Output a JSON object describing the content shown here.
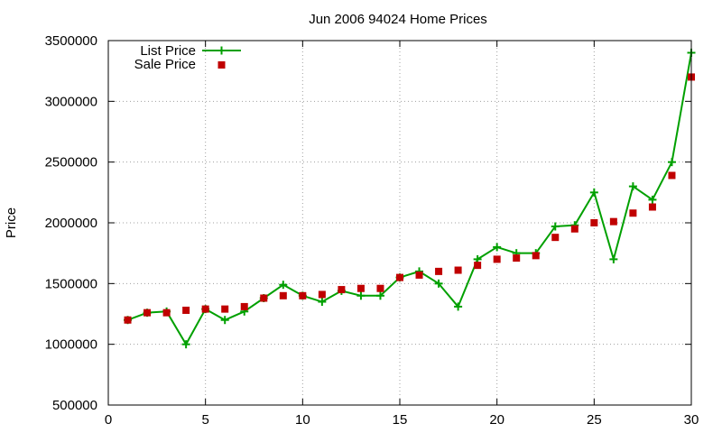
{
  "chart_data": {
    "type": "line",
    "title": "Jun 2006 94024 Home Prices",
    "xlabel": "",
    "ylabel": "Price",
    "xlim": [
      0,
      30
    ],
    "ylim": [
      500000,
      3500000
    ],
    "x_ticks": [
      0,
      5,
      10,
      15,
      20,
      25,
      30
    ],
    "y_ticks": [
      500000,
      1000000,
      1500000,
      2000000,
      2500000,
      3000000,
      3500000
    ],
    "grid": true,
    "legend_position": "top-left",
    "x": [
      1,
      2,
      3,
      4,
      5,
      6,
      7,
      8,
      9,
      10,
      11,
      12,
      13,
      14,
      15,
      16,
      17,
      18,
      19,
      20,
      21,
      22,
      23,
      24,
      25,
      26,
      27,
      28,
      29,
      30
    ],
    "series": [
      {
        "name": "List Price",
        "style": "linespoints",
        "marker": "plus",
        "color": "#00a000",
        "values": [
          1200000,
          1260000,
          1270000,
          1000000,
          1290000,
          1200000,
          1270000,
          1380000,
          1490000,
          1400000,
          1350000,
          1440000,
          1400000,
          1400000,
          1550000,
          1600000,
          1500000,
          1310000,
          1700000,
          1800000,
          1750000,
          1750000,
          1970000,
          1980000,
          2250000,
          1700000,
          2300000,
          2190000,
          2500000,
          3400000
        ]
      },
      {
        "name": "Sale Price",
        "style": "points",
        "marker": "square",
        "color": "#c00000",
        "values": [
          1200000,
          1260000,
          1260000,
          1280000,
          1290000,
          1290000,
          1310000,
          1380000,
          1400000,
          1400000,
          1410000,
          1450000,
          1460000,
          1460000,
          1550000,
          1570000,
          1600000,
          1610000,
          1650000,
          1700000,
          1710000,
          1730000,
          1880000,
          1950000,
          2000000,
          2010000,
          2080000,
          2130000,
          2390000,
          3200000
        ]
      }
    ]
  }
}
